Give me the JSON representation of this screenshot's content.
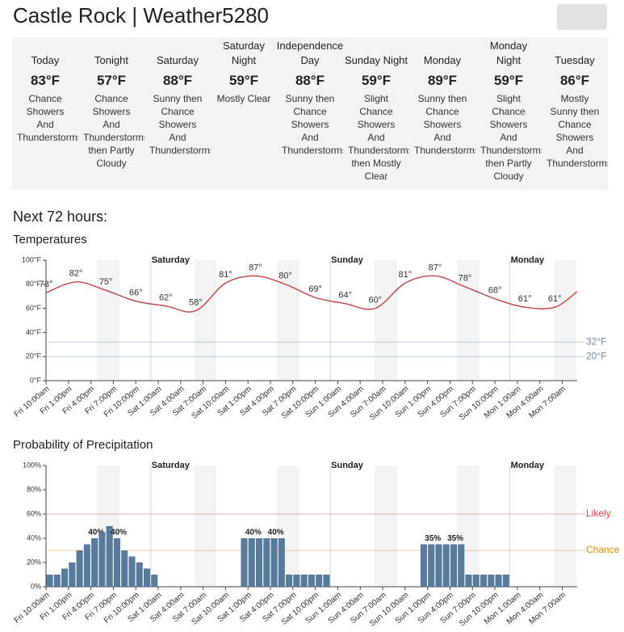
{
  "title": "Castle Rock | Weather5280",
  "forecast": [
    {
      "name": "Today",
      "temp": "83°F",
      "desc": "Chance Showers And Thunderstorms"
    },
    {
      "name": "Tonight",
      "temp": "57°F",
      "desc": "Chance Showers And Thunderstorms then Partly Cloudy"
    },
    {
      "name": "Saturday",
      "temp": "88°F",
      "desc": "Sunny then Chance Showers And Thunderstorms"
    },
    {
      "name": "Saturday Night",
      "temp": "59°F",
      "desc": "Mostly Clear"
    },
    {
      "name": "Independence Day",
      "temp": "88°F",
      "desc": "Sunny then Chance Showers And Thunderstorms"
    },
    {
      "name": "Sunday Night",
      "temp": "59°F",
      "desc": "Slight Chance Showers And Thunderstorms then Mostly Clear"
    },
    {
      "name": "Monday",
      "temp": "89°F",
      "desc": "Sunny then Chance Showers And Thunderstorms"
    },
    {
      "name": "Monday Night",
      "temp": "59°F",
      "desc": "Slight Chance Showers And Thunderstorms then Partly Cloudy"
    },
    {
      "name": "Tuesday",
      "temp": "86°F",
      "desc": "Mostly Sunny then Chance Showers And Thunderstorms"
    }
  ],
  "section_title": "Next 72 hours:",
  "chart_data": [
    {
      "type": "line",
      "title": "Temperatures",
      "color": "#c0504d",
      "x": [
        0,
        4,
        8,
        12,
        16,
        20,
        24,
        28,
        32,
        36,
        40,
        44,
        48,
        52,
        56,
        60,
        64,
        68,
        71
      ],
      "values": [
        73,
        82,
        75,
        66,
        62,
        58,
        81,
        87,
        80,
        69,
        64,
        60,
        81,
        87,
        78,
        68,
        61,
        61,
        74
      ],
      "value_labels": [
        "73°",
        "82°",
        "75°",
        "66°",
        "62°",
        "58°",
        "81°",
        "87°",
        "80°",
        "69°",
        "64°",
        "60°",
        "81°",
        "87°",
        "78°",
        "68°",
        "61°",
        "61°",
        null
      ],
      "xlim": [
        0,
        71
      ],
      "xticks": [
        {
          "value": 0,
          "label": "Fri 10:00am"
        },
        {
          "value": 3,
          "label": "Fri 1:00pm"
        },
        {
          "value": 6,
          "label": "Fri 4:00pm"
        },
        {
          "value": 9,
          "label": "Fri 7:00pm"
        },
        {
          "value": 12,
          "label": "Fri 10:00pm"
        },
        {
          "value": 15,
          "label": "Sat 1:00am"
        },
        {
          "value": 18,
          "label": "Sat 4:00am"
        },
        {
          "value": 21,
          "label": "Sat 7:00am"
        },
        {
          "value": 24,
          "label": "Sat 10:00am"
        },
        {
          "value": 27,
          "label": "Sat 1:00pm"
        },
        {
          "value": 30,
          "label": "Sat 4:00pm"
        },
        {
          "value": 33,
          "label": "Sat 7:00pm"
        },
        {
          "value": 36,
          "label": "Sat 10:00pm"
        },
        {
          "value": 39,
          "label": "Sun 1:00am"
        },
        {
          "value": 42,
          "label": "Sun 4:00am"
        },
        {
          "value": 45,
          "label": "Sun 7:00am"
        },
        {
          "value": 48,
          "label": "Sun 10:00am"
        },
        {
          "value": 51,
          "label": "Sun 1:00pm"
        },
        {
          "value": 54,
          "label": "Sun 4:00pm"
        },
        {
          "value": 57,
          "label": "Sun 7:00pm"
        },
        {
          "value": 60,
          "label": "Sun 10:00pm"
        },
        {
          "value": 63,
          "label": "Mon 1:00am"
        },
        {
          "value": 66,
          "label": "Mon 4:00am"
        },
        {
          "value": 69,
          "label": "Mon 7:00am"
        }
      ],
      "ylim": [
        0,
        100
      ],
      "yticks": [
        {
          "value": 0,
          "label": "0°F"
        },
        {
          "value": 20,
          "label": "20°F"
        },
        {
          "value": 40,
          "label": "40°F"
        },
        {
          "value": 60,
          "label": "60°F"
        },
        {
          "value": 80,
          "label": "80°F"
        },
        {
          "value": 100,
          "label": "100°F"
        }
      ],
      "day_markers": [
        {
          "x": 14,
          "label": "Saturday"
        },
        {
          "x": 38,
          "label": "Sunday"
        },
        {
          "x": 62,
          "label": "Monday"
        }
      ],
      "reference_lines": [
        {
          "value": 32,
          "label": "32°F",
          "color": "#6a8cad"
        },
        {
          "value": 20,
          "label": "20°F",
          "color": "#6a8cad"
        }
      ]
    },
    {
      "type": "bar",
      "title": "Probability of Precipitation",
      "color": "#587a9c",
      "x": [
        0,
        1,
        2,
        3,
        4,
        5,
        6,
        7,
        8,
        9,
        10,
        11,
        12,
        13,
        14,
        15,
        16,
        17,
        18,
        19,
        20,
        21,
        22,
        23,
        24,
        25,
        26,
        27,
        28,
        29,
        30,
        31,
        32,
        33,
        34,
        35,
        36,
        37,
        38,
        39,
        40,
        41,
        42,
        43,
        44,
        45,
        46,
        47,
        48,
        49,
        50,
        51,
        52,
        53,
        54,
        55,
        56,
        57,
        58,
        59,
        60,
        61,
        62,
        63,
        64,
        65,
        66,
        67,
        68,
        69,
        70
      ],
      "values": [
        10,
        10,
        15,
        20,
        30,
        35,
        40,
        45,
        50,
        40,
        30,
        25,
        20,
        15,
        10,
        0,
        0,
        0,
        0,
        0,
        0,
        0,
        0,
        0,
        0,
        0,
        40,
        40,
        40,
        40,
        40,
        40,
        10,
        10,
        10,
        10,
        10,
        10,
        0,
        0,
        0,
        0,
        0,
        0,
        0,
        0,
        0,
        0,
        0,
        0,
        35,
        35,
        35,
        35,
        35,
        35,
        10,
        10,
        10,
        10,
        10,
        10,
        0,
        0,
        0,
        0,
        0,
        0,
        0,
        0,
        0
      ],
      "value_labels": [
        null,
        null,
        null,
        null,
        null,
        null,
        "40%",
        null,
        null,
        "40%",
        null,
        null,
        null,
        null,
        null,
        null,
        null,
        null,
        null,
        null,
        null,
        null,
        null,
        null,
        null,
        null,
        null,
        "40%",
        null,
        null,
        "40%",
        null,
        null,
        null,
        null,
        null,
        null,
        null,
        null,
        null,
        null,
        null,
        null,
        null,
        null,
        null,
        null,
        null,
        null,
        null,
        null,
        "35%",
        null,
        null,
        "35%",
        null,
        null,
        null,
        null,
        null,
        null,
        null,
        null,
        null,
        null,
        null,
        null,
        null,
        null,
        null,
        null
      ],
      "xlim": [
        0,
        71
      ],
      "xticks": [
        {
          "value": 0,
          "label": "Fri 10:00am"
        },
        {
          "value": 3,
          "label": "Fri 1:00pm"
        },
        {
          "value": 6,
          "label": "Fri 4:00pm"
        },
        {
          "value": 9,
          "label": "Fri 7:00pm"
        },
        {
          "value": 12,
          "label": "Fri 10:00pm"
        },
        {
          "value": 15,
          "label": "Sat 1:00am"
        },
        {
          "value": 18,
          "label": "Sat 4:00am"
        },
        {
          "value": 21,
          "label": "Sat 7:00am"
        },
        {
          "value": 24,
          "label": "Sat 10:00am"
        },
        {
          "value": 27,
          "label": "Sat 1:00pm"
        },
        {
          "value": 30,
          "label": "Sat 4:00pm"
        },
        {
          "value": 33,
          "label": "Sat 7:00pm"
        },
        {
          "value": 36,
          "label": "Sat 10:00pm"
        },
        {
          "value": 39,
          "label": "Sun 1:00am"
        },
        {
          "value": 42,
          "label": "Sun 4:00am"
        },
        {
          "value": 45,
          "label": "Sun 7:00am"
        },
        {
          "value": 48,
          "label": "Sun 10:00am"
        },
        {
          "value": 51,
          "label": "Sun 1:00pm"
        },
        {
          "value": 54,
          "label": "Sun 4:00pm"
        },
        {
          "value": 57,
          "label": "Sun 7:00pm"
        },
        {
          "value": 60,
          "label": "Sun 10:00pm"
        },
        {
          "value": 63,
          "label": "Mon 1:00am"
        },
        {
          "value": 66,
          "label": "Mon 4:00am"
        },
        {
          "value": 69,
          "label": "Mon 7:00am"
        }
      ],
      "ylim": [
        0,
        100
      ],
      "yticks": [
        {
          "value": 0,
          "label": "0%"
        },
        {
          "value": 20,
          "label": "20%"
        },
        {
          "value": 40,
          "label": "40%"
        },
        {
          "value": 60,
          "label": "60%"
        },
        {
          "value": 80,
          "label": "80%"
        },
        {
          "value": 100,
          "label": "100%"
        }
      ],
      "day_markers": [
        {
          "x": 14,
          "label": "Saturday"
        },
        {
          "x": 38,
          "label": "Sunday"
        },
        {
          "x": 62,
          "label": "Monday"
        }
      ],
      "reference_lines": [
        {
          "value": 60,
          "label": "Likely",
          "color": "#d9404a"
        },
        {
          "value": 30,
          "label": "Chance",
          "color": "#e0870b"
        }
      ]
    }
  ]
}
